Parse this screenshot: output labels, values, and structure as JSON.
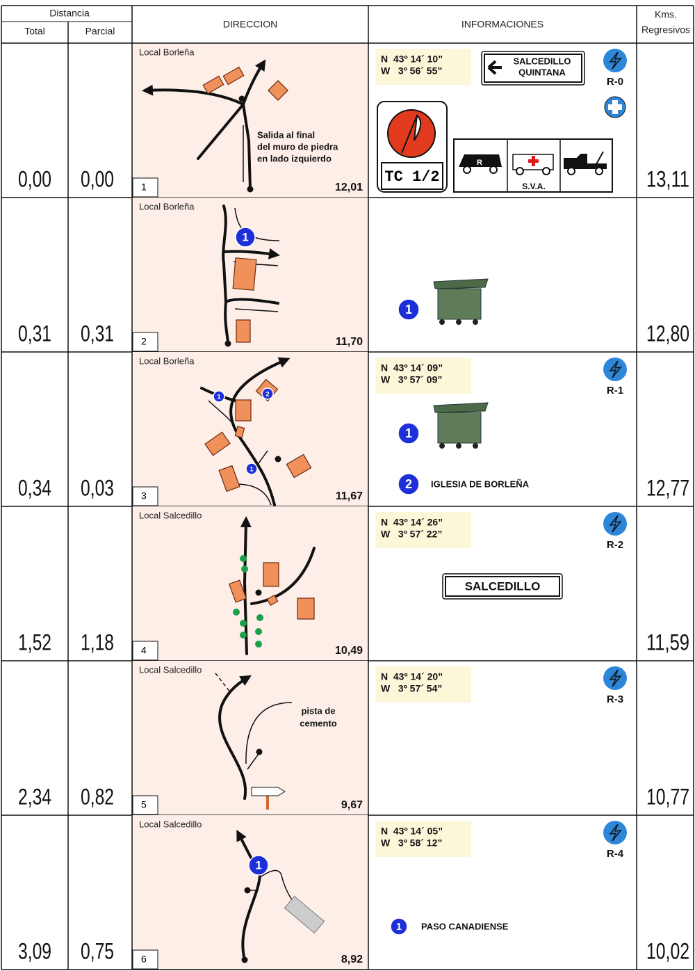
{
  "header": {
    "distance": "Distancia",
    "total": "Total",
    "partial": "Parcial",
    "direction": "DIRECCION",
    "information": "INFORMACIONES",
    "kms": "Kms.",
    "regressive": "Regresivos"
  },
  "rows": [
    {
      "total": "0,00",
      "partial": "0,00",
      "place": "Local Borleña",
      "number": "1",
      "remaining": "12,01",
      "regressive": "13,11",
      "diagram_note": [
        "Salida al final",
        "del muro de piedra",
        "en lado izquierdo"
      ],
      "coords": [
        "N  43º 14´ 10”",
        "W   3º 56´ 55”"
      ],
      "reference": "R-0",
      "sign": [
        "SALCEDILLO",
        "QUINTANA"
      ],
      "control": "TC 1/2",
      "van_label": "R",
      "ambulance": "S.V.A."
    },
    {
      "total": "0,31",
      "partial": "0,31",
      "place": "Local Borleña",
      "number": "2",
      "remaining": "11,70",
      "regressive": "12,80",
      "diagram_markers": [
        "1"
      ],
      "info_items": [
        {
          "marker": "1"
        }
      ]
    },
    {
      "total": "0,34",
      "partial": "0,03",
      "place": "Local Borleña",
      "number": "3",
      "remaining": "11,67",
      "regressive": "12,77",
      "diagram_markers": [
        "1",
        "2",
        "1"
      ],
      "coords": [
        "N  43º 14´ 09”",
        "W   3º 57´ 09”"
      ],
      "reference": "R-1",
      "info_items": [
        {
          "marker": "1"
        },
        {
          "marker": "2",
          "label": "IGLESIA DE BORLEÑA"
        }
      ]
    },
    {
      "total": "1,52",
      "partial": "1,18",
      "place": "Local Salcedillo",
      "number": "4",
      "remaining": "10,49",
      "regressive": "11,59",
      "coords": [
        "N  43º 14´ 26”",
        "W   3º 57´ 22”"
      ],
      "reference": "R-2",
      "sign": [
        "SALCEDILLO"
      ]
    },
    {
      "total": "2,34",
      "partial": "0,82",
      "place": "Local Salcedillo",
      "number": "5",
      "remaining": "9,67",
      "regressive": "10,77",
      "diagram_note": [
        "pista de",
        "cemento"
      ],
      "coords": [
        "N  43º 14´ 20”",
        "W   3º 57´ 54”"
      ],
      "reference": "R-3"
    },
    {
      "total": "3,09",
      "partial": "0,75",
      "place": "Local Salcedillo",
      "number": "6",
      "remaining": "8,92",
      "regressive": "10,02",
      "diagram_markers": [
        "1"
      ],
      "coords": [
        "N  43º 14´ 05”",
        "W   3º 58´ 12”"
      ],
      "reference": "R-4",
      "info_items": [
        {
          "marker": "1",
          "label": "PASO CANADIENSE"
        }
      ]
    }
  ]
}
